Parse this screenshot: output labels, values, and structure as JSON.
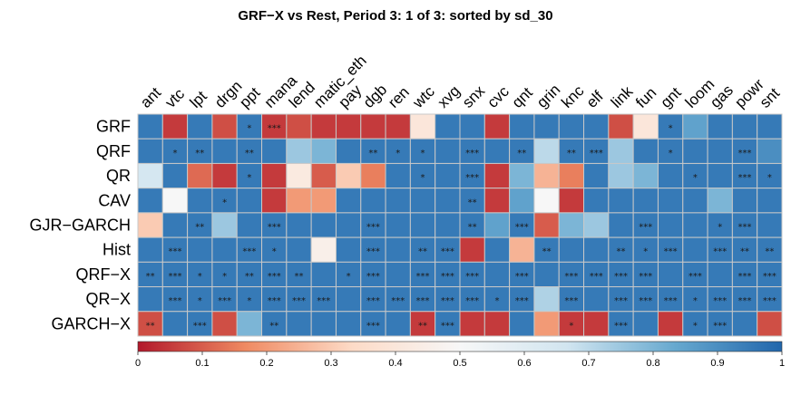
{
  "chart_data": {
    "type": "heatmap",
    "title": "GRF−X vs Rest,  Period 3: 1 of 3: sorted by sd_30",
    "columns": [
      "ant",
      "vtc",
      "lpt",
      "drgn",
      "ppt",
      "mana",
      "lend",
      "matic_eth",
      "pay",
      "dgb",
      "ren",
      "wtc",
      "xvg",
      "snx",
      "cvc",
      "qnt",
      "grin",
      "knc",
      "elf",
      "link",
      "fun",
      "gnt",
      "loom",
      "gas",
      "powr",
      "snt"
    ],
    "rows": [
      "GRF",
      "QRF",
      "QR",
      "CAV",
      "GJR−GARCH",
      "Hist",
      "QRF−X",
      "QR−X",
      "GARCH−X"
    ],
    "values": [
      [
        0.95,
        0.05,
        0.95,
        0.08,
        0.95,
        0.05,
        0.08,
        0.05,
        0.05,
        0.05,
        0.05,
        0.4,
        0.95,
        0.95,
        0.05,
        0.95,
        0.95,
        0.95,
        0.95,
        0.08,
        0.4,
        0.95,
        0.85,
        0.95,
        0.95,
        0.95
      ],
      [
        0.95,
        0.95,
        0.95,
        0.95,
        0.95,
        0.95,
        0.75,
        0.8,
        0.95,
        0.95,
        0.95,
        0.95,
        0.95,
        0.95,
        0.95,
        0.95,
        0.7,
        0.95,
        0.95,
        0.75,
        0.95,
        0.95,
        0.95,
        0.95,
        0.95,
        0.9
      ],
      [
        0.65,
        0.95,
        0.12,
        0.05,
        0.95,
        0.05,
        0.42,
        0.1,
        0.3,
        0.15,
        0.95,
        0.95,
        0.95,
        0.95,
        0.05,
        0.8,
        0.25,
        0.15,
        0.95,
        0.75,
        0.8,
        0.95,
        0.95,
        0.95,
        0.95,
        0.95
      ],
      [
        0.95,
        0.5,
        0.95,
        0.95,
        0.95,
        0.05,
        0.2,
        0.2,
        0.95,
        0.95,
        0.95,
        0.95,
        0.95,
        0.95,
        0.05,
        0.85,
        0.5,
        0.05,
        0.95,
        0.95,
        0.95,
        0.95,
        0.95,
        0.8,
        0.95,
        0.95
      ],
      [
        0.3,
        0.95,
        0.95,
        0.75,
        0.95,
        0.95,
        0.95,
        0.95,
        0.95,
        0.95,
        0.95,
        0.95,
        0.95,
        0.95,
        0.85,
        0.95,
        0.1,
        0.8,
        0.75,
        0.95,
        0.95,
        0.95,
        0.95,
        0.95,
        0.95,
        0.95
      ],
      [
        0.95,
        0.95,
        0.95,
        0.95,
        0.95,
        0.95,
        0.95,
        0.45,
        0.95,
        0.95,
        0.95,
        0.95,
        0.95,
        0.05,
        0.95,
        0.25,
        0.95,
        0.95,
        0.95,
        0.95,
        0.95,
        0.95,
        0.95,
        0.95,
        0.95,
        0.95
      ],
      [
        0.95,
        0.95,
        0.95,
        0.95,
        0.95,
        0.95,
        0.95,
        0.95,
        0.95,
        0.95,
        0.95,
        0.95,
        0.95,
        0.95,
        0.95,
        0.95,
        0.95,
        0.95,
        0.95,
        0.95,
        0.95,
        0.95,
        0.95,
        0.95,
        0.95,
        0.95
      ],
      [
        0.95,
        0.95,
        0.95,
        0.95,
        0.95,
        0.95,
        0.95,
        0.95,
        0.95,
        0.95,
        0.95,
        0.95,
        0.95,
        0.95,
        0.95,
        0.95,
        0.72,
        0.95,
        0.95,
        0.95,
        0.95,
        0.95,
        0.95,
        0.95,
        0.95,
        0.95
      ],
      [
        0.08,
        0.95,
        0.95,
        0.08,
        0.8,
        0.95,
        0.95,
        0.95,
        0.95,
        0.95,
        0.95,
        0.05,
        0.95,
        0.05,
        0.05,
        0.95,
        0.2,
        0.05,
        0.05,
        0.95,
        0.95,
        0.05,
        0.95,
        0.95,
        0.95,
        0.08
      ]
    ],
    "significance": [
      [
        "",
        "",
        "",
        "",
        "*",
        "***",
        "",
        "",
        "",
        "",
        "",
        "",
        "",
        "",
        "",
        "",
        "",
        "",
        "",
        "",
        "",
        "*",
        "",
        "",
        "",
        ""
      ],
      [
        "",
        "*",
        "**",
        "",
        "**",
        "",
        "",
        "",
        "",
        "**",
        "*",
        "*",
        "",
        "***",
        "",
        "**",
        "",
        "**",
        "***",
        "",
        "",
        "*",
        "",
        "",
        "***",
        ""
      ],
      [
        "",
        "",
        "",
        "",
        "*",
        "",
        "",
        "",
        "",
        "",
        "",
        "*",
        "",
        "***",
        "",
        "",
        "",
        "",
        "",
        "",
        "",
        "",
        "*",
        "",
        "***",
        "*"
      ],
      [
        "",
        "",
        "",
        "*",
        "",
        "",
        "",
        "",
        "",
        "",
        "",
        "",
        "",
        "**",
        "",
        "",
        "",
        "",
        "",
        "",
        "",
        "",
        "",
        "",
        "",
        ""
      ],
      [
        "",
        "",
        "**",
        "",
        "",
        "***",
        "",
        "",
        "",
        "***",
        "",
        "",
        "",
        "**",
        "",
        "***",
        "",
        "",
        "",
        "",
        "***",
        "",
        "",
        "*",
        "***",
        ""
      ],
      [
        "",
        "***",
        "",
        "",
        "***",
        "*",
        "",
        "",
        "",
        "***",
        "",
        "**",
        "***",
        "",
        "",
        "",
        "**",
        "",
        "",
        "**",
        "*",
        "***",
        "",
        "***",
        "**",
        "**"
      ],
      [
        "**",
        "***",
        "*",
        "*",
        "**",
        "***",
        "**",
        "",
        "*",
        "***",
        "",
        "***",
        "***",
        "***",
        "",
        "***",
        "",
        "***",
        "***",
        "***",
        "***",
        "",
        "***",
        "",
        "***",
        "***"
      ],
      [
        "",
        "***",
        "*",
        "***",
        "*",
        "***",
        "***",
        "***",
        "",
        "***",
        "***",
        "***",
        "***",
        "***",
        "*",
        "***",
        "",
        "***",
        "",
        "***",
        "***",
        "***",
        "*",
        "***",
        "***",
        "***"
      ],
      [
        "**",
        "",
        "***",
        "",
        "",
        "**",
        "",
        "",
        "",
        "***",
        "",
        "**",
        "***",
        "",
        "",
        "",
        "",
        "*",
        "",
        "***",
        "",
        "",
        "*",
        "***",
        "",
        ""
      ]
    ],
    "colorbar": {
      "min": 0,
      "max": 1,
      "ticks": [
        0,
        0.1,
        0.2,
        0.3,
        0.4,
        0.5,
        0.6,
        0.7,
        0.8,
        0.9,
        1
      ]
    },
    "colormap": [
      "#b2182b",
      "#ef8a62",
      "#fddbc7",
      "#f7f7f7",
      "#d1e5f0",
      "#67a9cf",
      "#2166ac"
    ],
    "grid": true
  }
}
